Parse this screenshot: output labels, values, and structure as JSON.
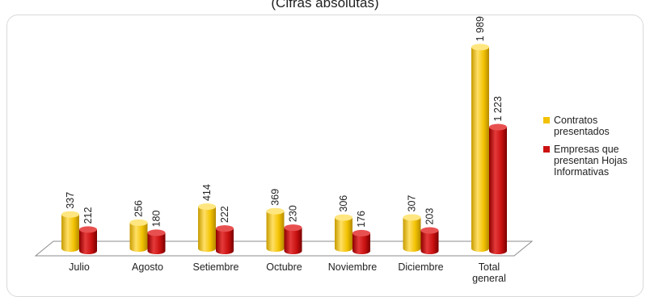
{
  "header": {
    "cut_title": "(Cifras absolutas)"
  },
  "chart_data": {
    "type": "bar",
    "title": "",
    "categories": [
      "Julio",
      "Agosto",
      "Setiembre",
      "Octubre",
      "Noviembre",
      "Diciembre",
      "Total general"
    ],
    "series": [
      {
        "name": "Contratos presentados",
        "values": [
          337,
          256,
          414,
          369,
          306,
          307,
          1989
        ],
        "labels": [
          "337",
          "256",
          "414",
          "369",
          "306",
          "307",
          "1 989"
        ],
        "color": "#f2c200"
      },
      {
        "name": "Empresas que presentan Hojas Informativas",
        "values": [
          212,
          180,
          222,
          230,
          176,
          203,
          1223
        ],
        "labels": [
          "212",
          "180",
          "222",
          "230",
          "176",
          "203",
          "1 223"
        ],
        "color": "#cc1111"
      }
    ],
    "xlabel": "",
    "ylabel": "",
    "ylim": [
      0,
      2000
    ],
    "grid": false,
    "legend_position": "right",
    "style": "3d-cylinder"
  },
  "legend": [
    {
      "label": "Contratos\npresentados",
      "color": "#f2c200"
    },
    {
      "label": "Empresas que\npresentan Hojas\nInformativas",
      "color": "#cc1111"
    }
  ]
}
